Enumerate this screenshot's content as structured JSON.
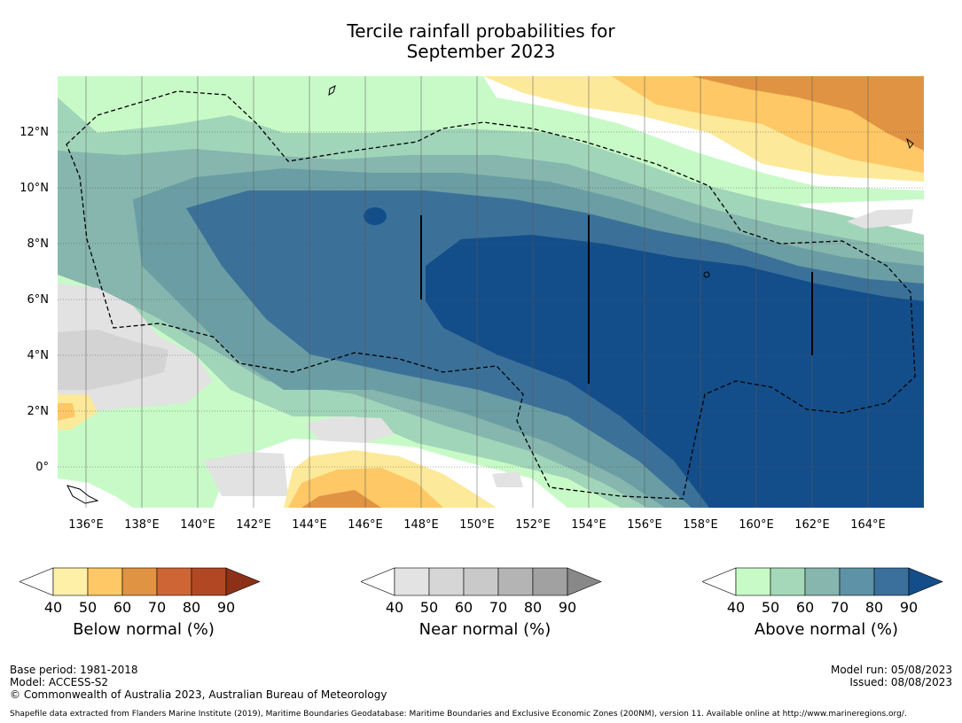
{
  "title": {
    "line1": "Tercile rainfall probabilities for",
    "line2": "September 2023"
  },
  "map": {
    "x_labels": [
      "136°E",
      "138°E",
      "140°E",
      "142°E",
      "144°E",
      "146°E",
      "148°E",
      "150°E",
      "152°E",
      "154°E",
      "156°E",
      "158°E",
      "160°E",
      "162°E",
      "164°E"
    ],
    "y_labels": [
      "12°N",
      "10°N",
      "8°N",
      "6°N",
      "4°N",
      "2°N",
      "0°"
    ],
    "colors": {
      "above40": "#c8fac8",
      "above50": "#a1d5b9",
      "above60": "#86b6ad",
      "above70": "#6a9ea4",
      "above80": "#3b7199",
      "above90": "#144e8a",
      "near40": "#e2e2e2",
      "near50": "#d3d3d3",
      "below40": "#fde99a",
      "below50": "#fdc865",
      "below60": "#e09343"
    }
  },
  "colorbars": [
    {
      "label": "Below normal (%)",
      "ticks": [
        "40",
        "50",
        "60",
        "70",
        "80",
        "90"
      ],
      "colors": [
        "#fff0a8",
        "#fdc865",
        "#e09343",
        "#cd6634",
        "#b24823",
        "#8c3017"
      ]
    },
    {
      "label": "Near normal (%)",
      "ticks": [
        "40",
        "50",
        "60",
        "70",
        "80",
        "90"
      ],
      "colors": [
        "#e3e3e3",
        "#d6d6d6",
        "#c9c9c9",
        "#b4b4b4",
        "#a1a1a1",
        "#888888"
      ]
    },
    {
      "label": "Above normal (%)",
      "ticks": [
        "40",
        "50",
        "60",
        "70",
        "80",
        "90"
      ],
      "colors": [
        "#c8fac8",
        "#a5d8b8",
        "#86b6ad",
        "#5e92a6",
        "#3b6f9c",
        "#144e8a"
      ]
    }
  ],
  "footer": {
    "base_period": "Base period: 1981-2018",
    "model": "Model: ACCESS-S2",
    "copyright": "© Commonwealth of Australia 2023, Australian Bureau of Meteorology",
    "model_run": "Model run: 05/08/2023",
    "issued": "Issued: 08/08/2023",
    "source": "Shapefile data extracted from Flanders Marine Institute (2019), Maritime Boundaries Geodatabase: Maritime Boundaries and Exclusive Economic Zones (200NM), version 11. Available online at http://www.marineregions.org/."
  }
}
